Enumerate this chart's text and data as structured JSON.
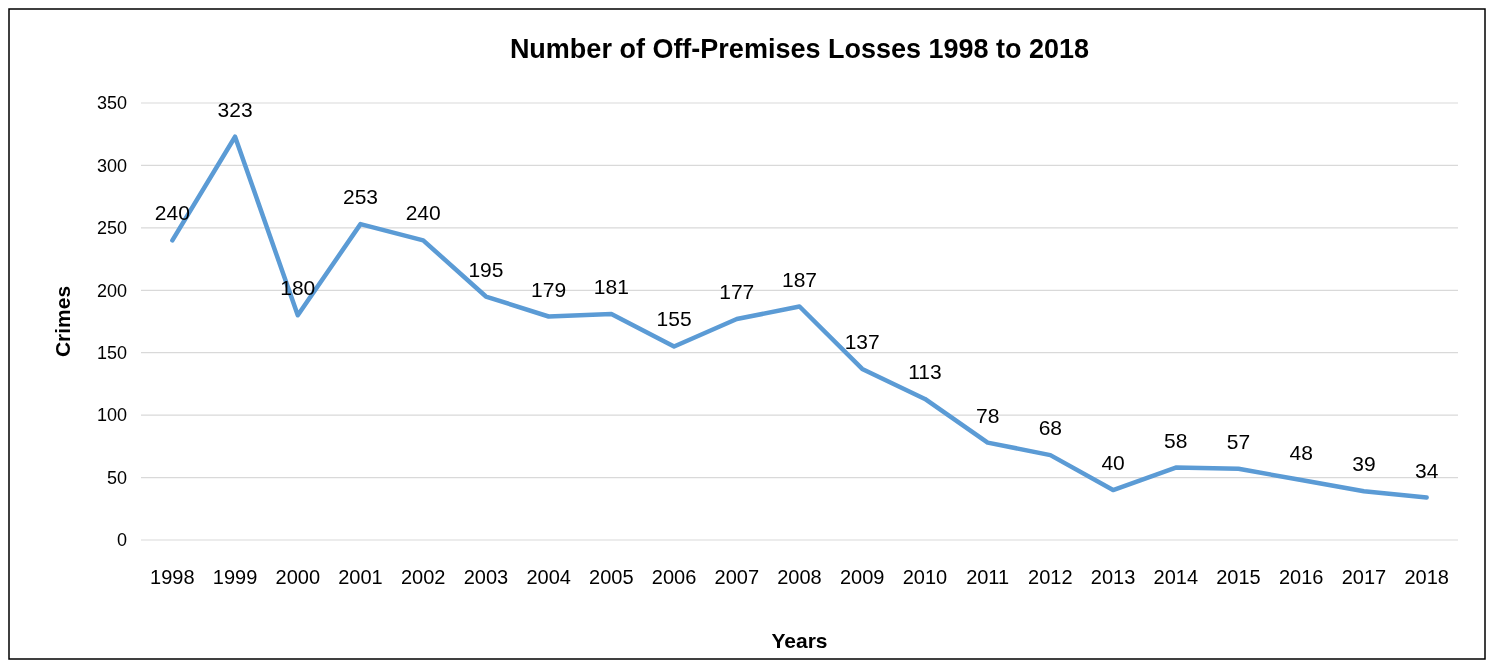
{
  "chart_data": {
    "type": "line",
    "title": "Number of Off-Premises Losses 1998 to 2018",
    "xlabel": "Years",
    "ylabel": "Crimes",
    "categories": [
      "1998",
      "1999",
      "2000",
      "2001",
      "2002",
      "2003",
      "2004",
      "2005",
      "2006",
      "2007",
      "2008",
      "2009",
      "2010",
      "2011",
      "2012",
      "2013",
      "2014",
      "2015",
      "2016",
      "2017",
      "2018"
    ],
    "series": [
      {
        "color": "#5b9bd5",
        "values": [
          240,
          323,
          180,
          253,
          240,
          195,
          179,
          181,
          155,
          177,
          187,
          137,
          113,
          78,
          68,
          40,
          58,
          57,
          48,
          39,
          34
        ]
      }
    ],
    "ylim": [
      0,
      350
    ],
    "yticks": [
      0,
      50,
      100,
      150,
      200,
      250,
      300,
      350
    ],
    "grid": "y",
    "data_labels": true,
    "marker": "none",
    "line_style": "solid"
  }
}
